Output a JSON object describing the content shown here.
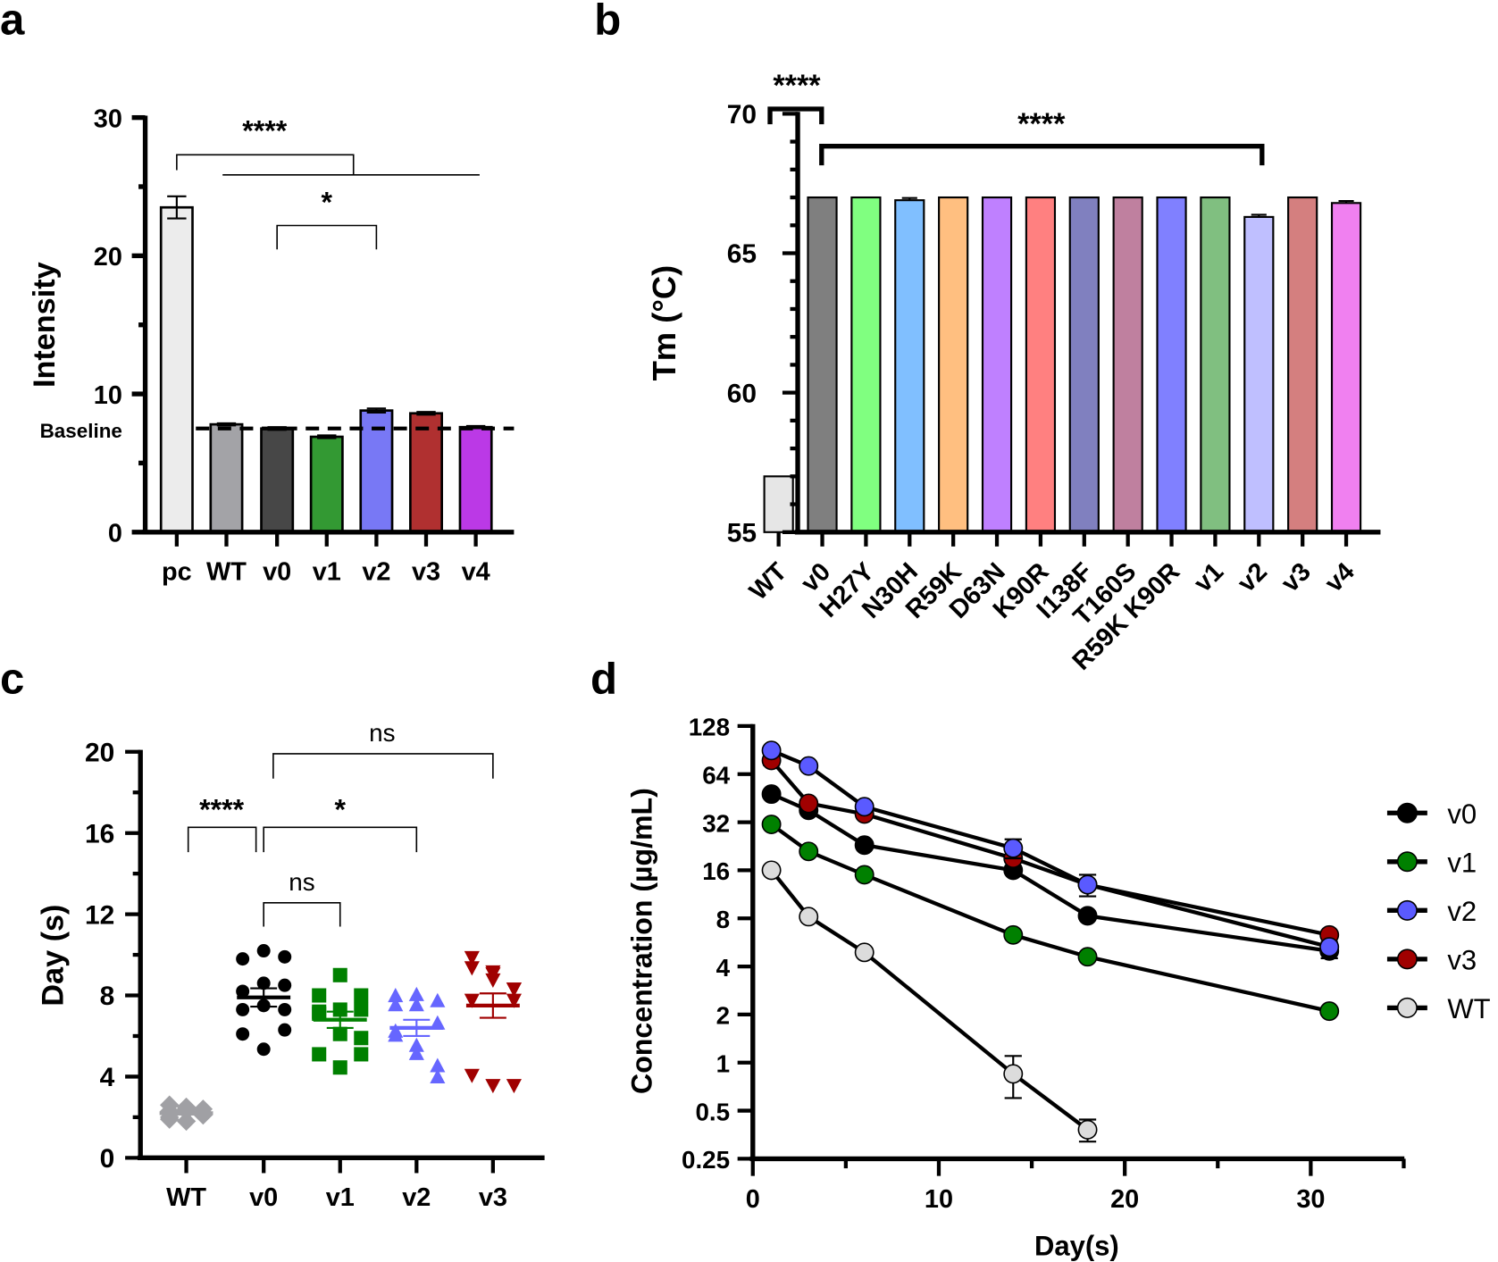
{
  "panel_labels": {
    "a": "a",
    "b": "b",
    "c": "c",
    "d": "d"
  },
  "chart_data": [
    {
      "panel": "a",
      "type": "bar",
      "ylabel": "Intensity",
      "ylim": [
        0,
        30
      ],
      "yticks": [
        "0",
        "10",
        "20",
        "30"
      ],
      "categories": [
        "pc",
        "WT",
        "v0",
        "v1",
        "v2",
        "v3",
        "v4"
      ],
      "values": [
        23.5,
        7.8,
        7.5,
        6.9,
        8.8,
        8.6,
        7.6
      ],
      "errors": [
        0.8,
        0.08,
        0.1,
        0.1,
        0.15,
        0.1,
        0.08
      ],
      "colors": [
        "#ececec",
        "#a3a3a7",
        "#474747",
        "#339933",
        "#7878f5",
        "#b03030",
        "#bb39e6"
      ],
      "baseline": {
        "label": "Baseline",
        "value": 7.5
      },
      "significance": [
        {
          "label": "****",
          "groups": [
            "pc",
            "WT–v4"
          ]
        },
        {
          "label": "*",
          "groups": [
            "v0",
            "v2"
          ]
        }
      ]
    },
    {
      "panel": "b",
      "type": "bar",
      "ylabel": "Tm (°C)",
      "ylim": [
        55,
        70
      ],
      "yticks": [
        "55",
        "60",
        "65",
        "70"
      ],
      "categories": [
        "WT",
        "v0",
        "H27Y",
        "N30H",
        "R59K",
        "D63N",
        "K90R",
        "I138F",
        "T160S",
        "R59K K90R",
        "v1",
        "v2",
        "v3",
        "v4"
      ],
      "values": [
        57.0,
        67.0,
        67.0,
        66.9,
        67.0,
        67.0,
        67.0,
        67.0,
        67.0,
        67.0,
        67.0,
        66.3,
        67.0,
        66.8
      ],
      "errors": [
        0,
        0,
        0,
        0.08,
        0,
        0,
        0,
        0,
        0,
        0,
        0,
        0.08,
        0,
        0.07
      ],
      "colors": [
        "#e6e6e6",
        "#7f7f7f",
        "#80ff80",
        "#80bfff",
        "#ffbf80",
        "#bf80ff",
        "#ff8080",
        "#8080bf",
        "#bf809f",
        "#8080ff",
        "#80bf80",
        "#bfbfff",
        "#d47f7f",
        "#f080f0"
      ],
      "significance": [
        {
          "label": "****",
          "groups": [
            "WT",
            "v0"
          ]
        },
        {
          "label": "****",
          "groups": [
            "v0",
            "v2"
          ]
        }
      ]
    },
    {
      "panel": "c",
      "type": "scatter",
      "ylabel": "Day (s)",
      "ylim": [
        0,
        20
      ],
      "yticks": [
        "0",
        "4",
        "8",
        "12",
        "16",
        "20"
      ],
      "categories": [
        "WT",
        "v0",
        "v1",
        "v2",
        "v3"
      ],
      "series": [
        {
          "name": "WT",
          "color": "#a0a0a4",
          "marker": "diamond",
          "values": [
            2.6,
            2.4,
            2.2,
            2.0,
            2.3,
            2.1,
            1.9,
            2.5,
            2.2,
            2.3,
            1.8,
            2.4
          ],
          "mean": 2.2,
          "sem": 0.07
        },
        {
          "name": "v0",
          "color": "#000000",
          "marker": "circle",
          "values": [
            9.8,
            10.2,
            9.9,
            8.2,
            8.6,
            8.5,
            7.3,
            7.5,
            7.3,
            6.1,
            5.35,
            6.3
          ],
          "mean": 7.9,
          "sem": 0.45
        },
        {
          "name": "v1",
          "color": "#008000",
          "marker": "square",
          "values": [
            8.0,
            9.0,
            8.0,
            7.2,
            7.3,
            7.3,
            7.1,
            6.1,
            5.9,
            5.1,
            4.45,
            5.1
          ],
          "mean": 6.8,
          "sem": 0.4
        },
        {
          "name": "v2",
          "color": "#6666ff",
          "marker": "triangle-up",
          "values": [
            7.5,
            8.0,
            7.7,
            7.95,
            7.5,
            6.6,
            6.0,
            5.1,
            3.95,
            6.2,
            5.5,
            4.5
          ],
          "mean": 6.4,
          "sem": 0.4
        },
        {
          "name": "v3",
          "color": "#a00000",
          "marker": "triangle-down",
          "values": [
            9.4,
            8.8,
            7.8,
            9.9,
            9.1,
            8.35,
            4.1,
            9.2,
            8.35,
            7.8,
            3.6,
            3.6
          ],
          "mean": 7.5,
          "sem": 0.6
        }
      ],
      "significance": [
        {
          "label": "****",
          "groups": [
            "WT",
            "v0"
          ]
        },
        {
          "label": "*",
          "groups": [
            "v0",
            "v2"
          ]
        },
        {
          "label": "ns",
          "groups": [
            "v0",
            "v1"
          ]
        },
        {
          "label": "ns",
          "groups": [
            "v0",
            "v3"
          ]
        }
      ]
    },
    {
      "panel": "d",
      "type": "line",
      "xlabel": "Day(s)",
      "ylabel": "Concentration (µg/mL)",
      "xlim": [
        0,
        35
      ],
      "xticks": [
        "0",
        "10",
        "20",
        "30"
      ],
      "yscale": "log2",
      "ylim": [
        0.25,
        128
      ],
      "yticks": [
        "0.25",
        "0.5",
        "1",
        "2",
        "4",
        "8",
        "16",
        "32",
        "64",
        "128"
      ],
      "legend_position": "right",
      "series": [
        {
          "name": "v0",
          "color": "#000000",
          "x": [
            1,
            3,
            6,
            14,
            18,
            31
          ],
          "y": [
            48,
            38,
            23,
            16,
            8.3,
            5.0
          ],
          "err": [
            0,
            0,
            0,
            0,
            0,
            0.5
          ]
        },
        {
          "name": "v1",
          "color": "#008000",
          "x": [
            1,
            3,
            6,
            14,
            18,
            31
          ],
          "y": [
            31,
            21,
            15,
            6.3,
            4.6,
            2.1
          ],
          "err": [
            0,
            0,
            0,
            0,
            0,
            0
          ]
        },
        {
          "name": "v2",
          "color": "#5a5aff",
          "x": [
            1,
            3,
            6,
            14,
            18,
            31
          ],
          "y": [
            90,
            72,
            40,
            22,
            13,
            5.3
          ],
          "err": [
            0,
            0,
            0,
            3,
            2,
            0.4
          ]
        },
        {
          "name": "v3",
          "color": "#a00000",
          "x": [
            1,
            3,
            6,
            14,
            18,
            31
          ],
          "y": [
            78,
            42,
            36,
            19,
            13,
            6.3
          ],
          "err": [
            5,
            0,
            0,
            2,
            0,
            0
          ]
        },
        {
          "name": "WT",
          "color": "#dcdcdc",
          "x": [
            1,
            3,
            6,
            14,
            18
          ],
          "y": [
            16,
            8.2,
            4.9,
            0.85,
            0.38
          ],
          "err": [
            0,
            0,
            0,
            0.25,
            0.06
          ]
        }
      ]
    }
  ]
}
